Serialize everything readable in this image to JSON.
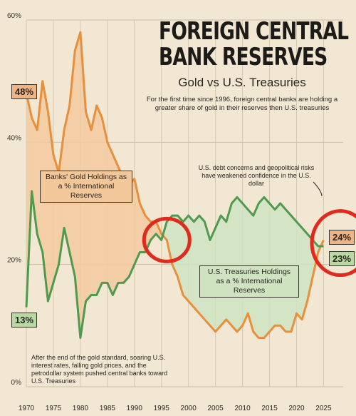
{
  "header": {
    "title_line1": "FOREIGN CENTRAL",
    "title_line2": "BANK RESERVES",
    "subtitle": "Gold vs U.S. Treasuries",
    "description": "For the first time since 1996, foreign central banks are holding a greater share of gold in their reserves then U.S. treasuries"
  },
  "annotations": {
    "gold_box": "Banks' Gold Holdings as a % International Reserves",
    "treasury_box": "U.S. Treasuries Holdings as a % International Reserves",
    "debt_note": "U.S. debt concerns and geopolitical risks have weakened confidence in the U.S. dollar",
    "gold_standard_note": "After the end of the gold standard, soaring U.S. interest rates, falling gold prices, and the petrodollar system pushed central banks toward U.S. Treasuries"
  },
  "badges": {
    "gold_start": "48%",
    "treasury_start": "13%",
    "gold_end": "24%",
    "treasury_end": "23%"
  },
  "colors": {
    "background": "#f1e7d3",
    "gold_line": "#e88f3c",
    "gold_fill": "#f3c99e",
    "treasury_line": "#4f9a4f",
    "treasury_fill": "#cfe4c2",
    "highlight_circle": "#e02a1c"
  },
  "chart_data": {
    "type": "line",
    "title": "FOREIGN CENTRAL BANK RESERVES",
    "subtitle": "Gold vs U.S. Treasuries",
    "xlabel": "",
    "ylabel": "",
    "xlim": [
      1970,
      2026
    ],
    "ylim": [
      0,
      60
    ],
    "x_ticks": [
      1970,
      1975,
      1980,
      1985,
      1990,
      1995,
      2000,
      2005,
      2010,
      2015,
      2020,
      2025
    ],
    "y_ticks": [
      "0%",
      "20%",
      "40%",
      "60%"
    ],
    "grid": true,
    "x": [
      1970,
      1971,
      1972,
      1973,
      1974,
      1975,
      1976,
      1977,
      1978,
      1979,
      1980,
      1981,
      1982,
      1983,
      1984,
      1985,
      1986,
      1987,
      1988,
      1989,
      1990,
      1991,
      1992,
      1993,
      1994,
      1995,
      1996,
      1997,
      1998,
      1999,
      2000,
      2001,
      2002,
      2003,
      2004,
      2005,
      2006,
      2007,
      2008,
      2009,
      2010,
      2011,
      2012,
      2013,
      2014,
      2015,
      2016,
      2017,
      2018,
      2019,
      2020,
      2021,
      2022,
      2023,
      2024,
      2025
    ],
    "series": [
      {
        "name": "Banks' Gold Holdings as a % International Reserves",
        "values": [
          48,
          44,
          42,
          50,
          45,
          38,
          35,
          42,
          46,
          55,
          58,
          45,
          42,
          46,
          44,
          40,
          38,
          36,
          34,
          33,
          34,
          30,
          28,
          27,
          27,
          25,
          24,
          20,
          18,
          15,
          14,
          13,
          12,
          11,
          10,
          9,
          10,
          11,
          10,
          9,
          10,
          12,
          9,
          8,
          8,
          9,
          10,
          10,
          9,
          9,
          12,
          11,
          14,
          18,
          22,
          24
        ]
      },
      {
        "name": "U.S. Treasuries Holdings as a % International Reserves",
        "values": [
          13,
          32,
          25,
          22,
          14,
          17,
          20,
          26,
          22,
          18,
          8,
          14,
          15,
          15,
          17,
          17,
          15,
          17,
          17,
          18,
          20,
          22,
          22,
          24,
          25,
          24,
          27,
          28,
          28,
          27,
          28,
          27,
          28,
          27,
          24,
          26,
          28,
          27,
          30,
          31,
          30,
          29,
          28,
          30,
          31,
          30,
          29,
          30,
          29,
          28,
          27,
          26,
          25,
          24,
          23,
          23
        ]
      }
    ]
  }
}
